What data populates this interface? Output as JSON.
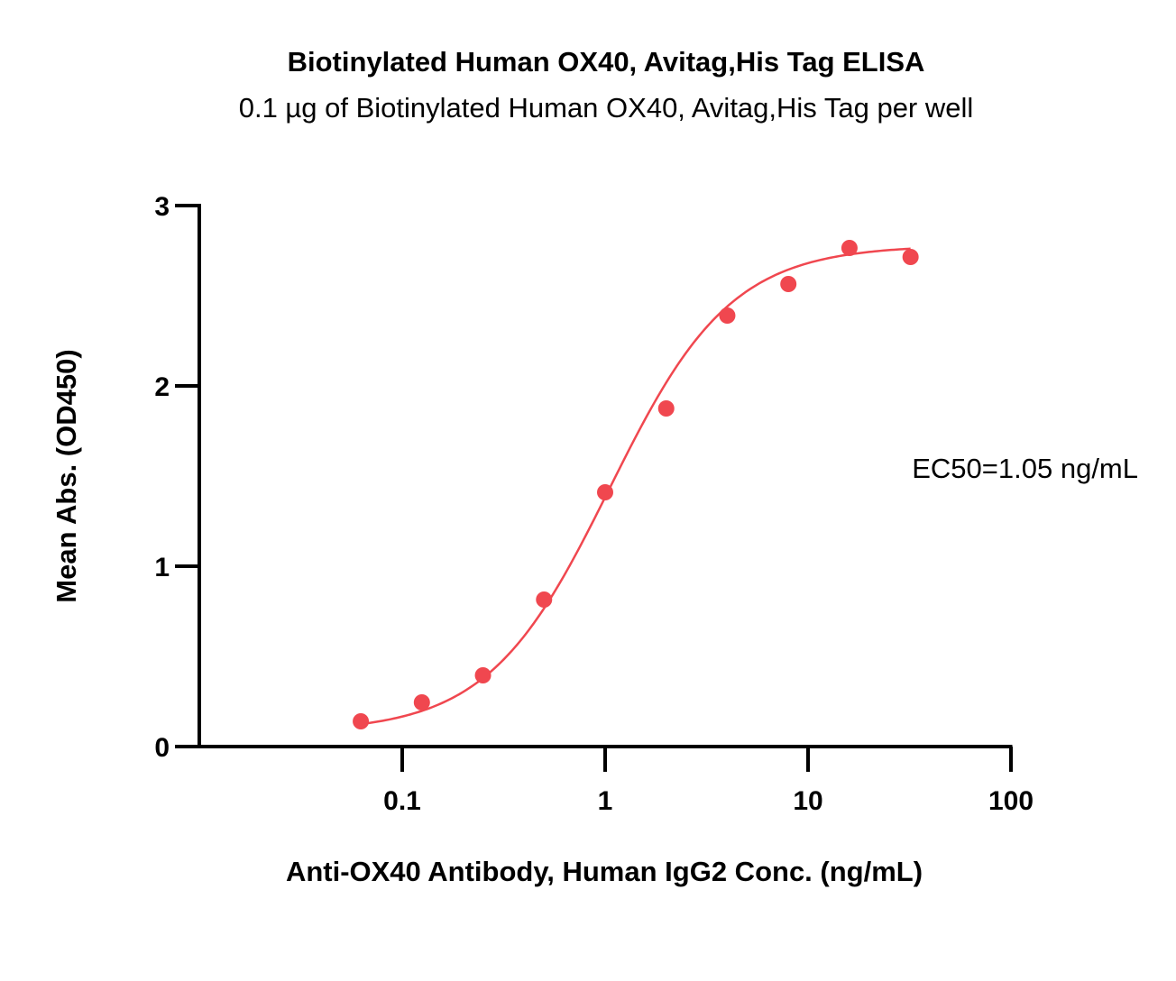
{
  "chart_data": {
    "type": "scatter",
    "title": "Biotinylated Human OX40, Avitag,His Tag ELISA",
    "subtitle": "0.1 µg of Biotinylated Human OX40, Avitag,His Tag per well",
    "xlabel": "Anti-OX40 Antibody, Human IgG2 Conc. (ng/mL)",
    "ylabel": "Mean Abs. (OD450)",
    "xscale": "log",
    "xlim": [
      0.01,
      100
    ],
    "ylim": [
      0,
      3
    ],
    "xticks": [
      0.1,
      1,
      10,
      100
    ],
    "xtick_labels": [
      "0.1",
      "1",
      "10",
      "100"
    ],
    "yticks": [
      0,
      1,
      2,
      3
    ],
    "ytick_labels": [
      "0",
      "1",
      "2",
      "3"
    ],
    "grid": false,
    "color": "#f0474f",
    "annotation": "EC50=1.05 ng/mL",
    "series": [
      {
        "x": [
          0.0625,
          0.125,
          0.25,
          0.5,
          1,
          2,
          4,
          8,
          16,
          32
        ],
        "y": [
          0.14,
          0.245,
          0.395,
          0.815,
          1.41,
          1.875,
          2.39,
          2.565,
          2.765,
          2.715
        ]
      }
    ],
    "fit": {
      "model": "4PL",
      "bottom": 0.08,
      "top": 2.78,
      "ec50": 1.05,
      "hill": 1.45
    }
  }
}
